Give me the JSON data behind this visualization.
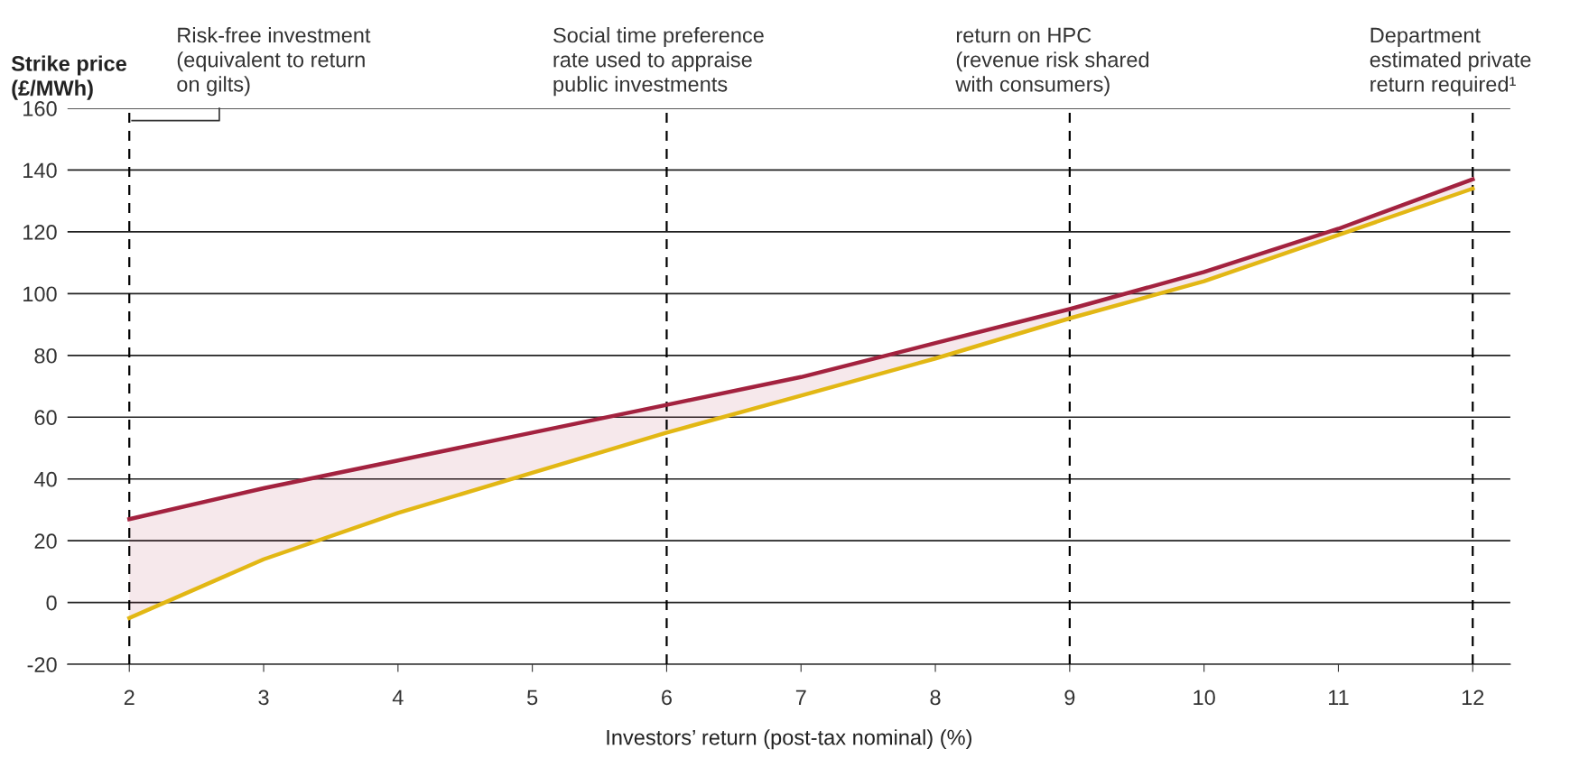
{
  "chart_data": {
    "type": "line",
    "xlabel": "Investors’ return (post-tax nominal) (%)",
    "ylabel": "Strike price\n(£/MWh)",
    "x": [
      2,
      3,
      4,
      5,
      6,
      7,
      8,
      9,
      10,
      11,
      12
    ],
    "series": [
      {
        "color": "#a3223f",
        "values": [
          27,
          37,
          46,
          55,
          64,
          73,
          84,
          95,
          107,
          121,
          137
        ],
        "lower": [
          -5,
          14,
          29,
          42,
          55,
          67,
          79,
          92,
          104,
          119,
          134
        ],
        "upper": [
          27,
          37,
          46,
          55,
          64,
          73,
          84,
          95,
          107,
          121,
          137
        ]
      },
      {
        "color": "#e2b714",
        "values": [
          -5,
          14,
          29,
          42,
          55,
          67,
          79,
          92,
          104,
          119,
          134
        ]
      }
    ],
    "xlim": [
      1.54,
      12.28
    ],
    "ylim": [
      -20,
      160
    ],
    "xticks": [
      2,
      3,
      4,
      5,
      6,
      7,
      8,
      9,
      10,
      11,
      12
    ],
    "yticks": [
      -20,
      0,
      20,
      40,
      60,
      80,
      100,
      120,
      140,
      160
    ],
    "grid": "y",
    "marker": "none",
    "line_style": "solid",
    "ref_lines": [
      {
        "axis": "x",
        "value": 2,
        "label": "Risk-free investment\n(equivalent to return\non gilts)",
        "color": "#000000",
        "line_style": "dashed"
      },
      {
        "axis": "x",
        "value": 6,
        "label": "Social time preference\nrate used to appraise\npublic investments",
        "color": "#000000",
        "line_style": "dashed"
      },
      {
        "axis": "x",
        "value": 9,
        "label": "return on HPC\n(revenue risk shared\nwith consumers)",
        "color": "#000000",
        "line_style": "dashed"
      },
      {
        "axis": "x",
        "value": 12,
        "label": "Department\nestimated private\nreturn required¹",
        "color": "#000000",
        "line_style": "dashed"
      }
    ]
  }
}
